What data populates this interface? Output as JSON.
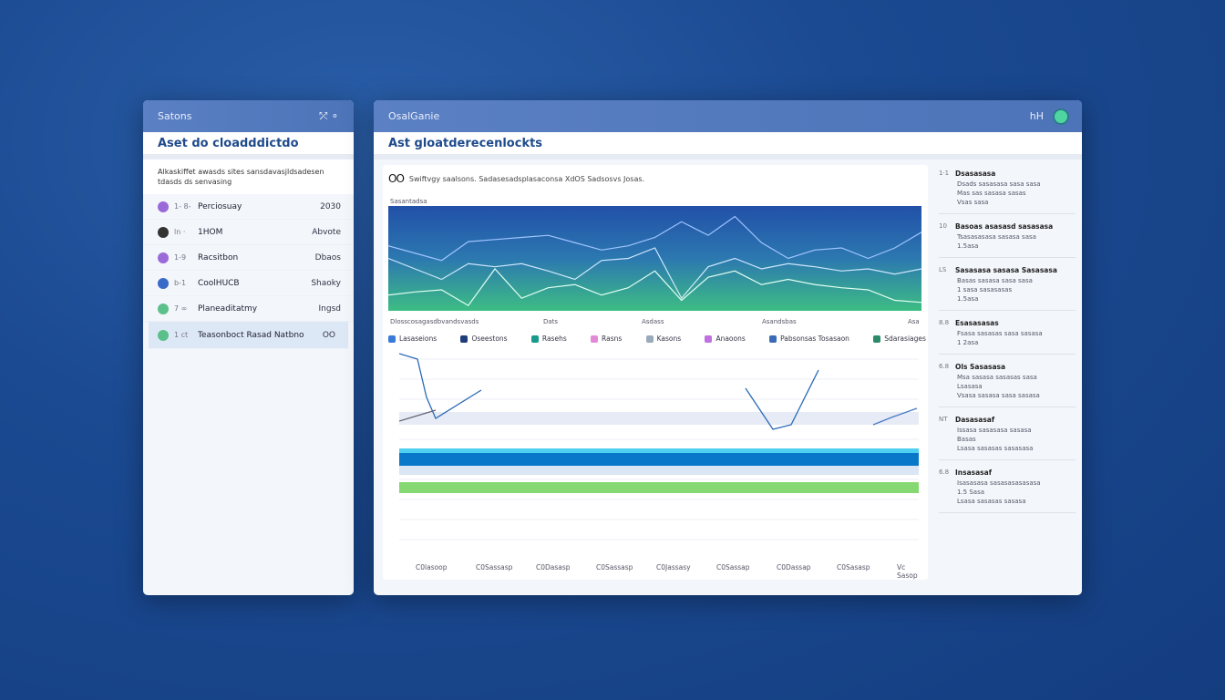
{
  "left": {
    "header": "Satons",
    "title": "Aset do cloadddictdo",
    "description": "Alkaskiffet awasds sites sansdavasjldsadesen tdasds ds senvasing",
    "rows": [
      {
        "label": "Perciosuay",
        "mini": "1- 8-",
        "value": "2030",
        "color": "#9a6ad8"
      },
      {
        "label": "1HOM",
        "mini": "ln ·",
        "value": "Abvote",
        "color": "#333"
      },
      {
        "label": "Racsitbon",
        "mini": "1-9",
        "value": "Dbaos",
        "color": "#9a6ad8"
      },
      {
        "label": "CoolHUCB",
        "mini": "b-1",
        "value": "Shaoky",
        "color": "#3a6ac8"
      },
      {
        "label": "Planeaditatmy",
        "mini": "7 ∞",
        "value": "Ingsd",
        "color": "#5cc08a"
      },
      {
        "label": "Teasonboct Rasad Natbno",
        "mini": "1 ct",
        "value": "OO",
        "color": "#5cc08a"
      }
    ]
  },
  "main": {
    "header": "OsalGanie",
    "title": "Ast gloatderecenlockts",
    "card_desc": "Swiftvgy saalsons. Sadasesadsplasaconsa XdOS Sadsosvs Josas.",
    "oo": "OO",
    "chart_caption": "Sasantadsa",
    "sub_labels": [
      "Dlosscosagasdbvandsvasds",
      "Dats",
      "Asdass",
      "Asandsbas",
      "Asa"
    ],
    "legend": [
      {
        "label": "Lasaseions",
        "color": "#3a7ad8"
      },
      {
        "label": "Oseestons",
        "color": "#1e3e7a"
      },
      {
        "label": "Rasehs",
        "color": "#1a9a8a"
      },
      {
        "label": "Rasns",
        "color": "#e28ad8"
      },
      {
        "label": "Kasons",
        "color": "#9ab"
      },
      {
        "label": "Anaoons",
        "color": "#c070e0"
      },
      {
        "label": "Pabsonsas Tosasaon",
        "color": "#3a6ab8"
      },
      {
        "label": "Sdarasiages",
        "color": "#2a8a6a"
      }
    ],
    "x_ticks": [
      "C0lasoop",
      "C0Sassasp",
      "C0Dasasp",
      "C0Sassasp",
      "C0Jassasy",
      "C0Sassap",
      "C0Dassap",
      "C0Sasasp",
      "Vc Sasop"
    ],
    "upper_series": [
      0.62,
      0.55,
      0.48,
      0.66,
      0.68,
      0.7,
      0.72,
      0.65,
      0.58,
      0.62,
      0.7,
      0.85,
      0.72,
      0.9,
      0.65,
      0.5,
      0.58,
      0.6,
      0.5,
      0.6,
      0.75
    ],
    "mid_series": [
      0.5,
      0.4,
      0.3,
      0.45,
      0.42,
      0.45,
      0.38,
      0.3,
      0.48,
      0.5,
      0.6,
      0.12,
      0.42,
      0.5,
      0.4,
      0.45,
      0.42,
      0.38,
      0.4,
      0.35,
      0.4
    ],
    "lower_series": [
      0.15,
      0.18,
      0.2,
      0.05,
      0.4,
      0.12,
      0.22,
      0.25,
      0.15,
      0.22,
      0.38,
      0.1,
      0.32,
      0.38,
      0.25,
      0.3,
      0.25,
      0.22,
      0.2,
      0.1,
      0.08
    ]
  },
  "side": {
    "header_badge": "hH",
    "items": [
      {
        "title": "Dsasasasa",
        "lines": [
          "Dsads sasasasa sasa sasa",
          "Mas sas sasasa sasas",
          "Vsas sasa"
        ],
        "num": "1·1"
      },
      {
        "title": "Basoas asasasd sasasasa",
        "lines": [
          "Tsasasasasa sasasa sasa",
          "1.5asa"
        ],
        "num": "10"
      },
      {
        "title": "Sasasasa sasasa Sasasasa",
        "lines": [
          "Basas sasasa sasa sasa",
          "1 sasa sasasasas",
          "1.5asa"
        ],
        "num": "LS"
      },
      {
        "title": "Esasasasas",
        "lines": [
          "Fsasa sasasas sasa sasasa",
          "1 2asa"
        ],
        "num": "8.8"
      },
      {
        "title": "Ols Sasasasa",
        "lines": [
          "Msa sasasa sasasas sasa",
          "Lsasasa",
          "Vsasa sasasa sasa sasasa"
        ],
        "num": "6.8"
      },
      {
        "title": "Dasasasaf",
        "lines": [
          "Issasa sasasasa sasasa",
          "Basas",
          "Lsasa sasasas sasasasa"
        ],
        "num": "NT"
      },
      {
        "title": "Insasasaf",
        "lines": [
          "Isasasasa sasasasasasasa",
          "1.5 Sasa",
          "Lsasa sasasas sasasa"
        ],
        "num": "6.8"
      }
    ]
  }
}
